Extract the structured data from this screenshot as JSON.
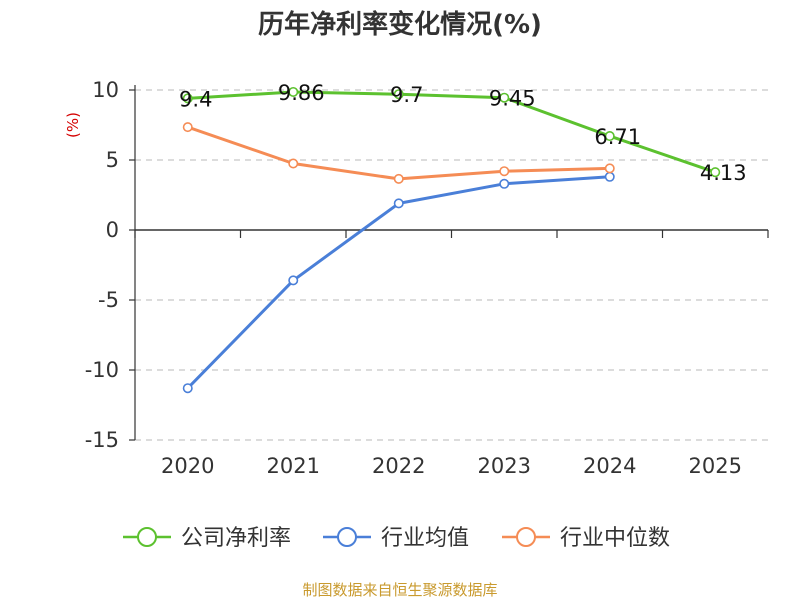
{
  "chart_data": {
    "type": "line",
    "title": "历年净利率变化情况(%)",
    "ylabel": "(%)",
    "categories": [
      "2020",
      "2021",
      "2022",
      "2023",
      "2024",
      "2025"
    ],
    "ylim": [
      -15,
      10
    ],
    "yticks": [
      10,
      5,
      0,
      -5,
      -10,
      -15
    ],
    "grid": true,
    "legend_position": "bottom",
    "series": [
      {
        "name": "公司净利率",
        "color": "#5cc12f",
        "values": [
          9.4,
          9.86,
          9.7,
          9.45,
          6.71,
          4.13
        ],
        "labels": [
          "9.4",
          "9.86",
          "9.7",
          "9.45",
          "6.71",
          "4.13"
        ]
      },
      {
        "name": "行业均值",
        "color": "#4a7fd8",
        "values": [
          -11.3,
          -3.6,
          1.9,
          3.3,
          3.8,
          null
        ]
      },
      {
        "name": "行业中位数",
        "color": "#f58c55",
        "values": [
          7.35,
          4.75,
          3.65,
          4.2,
          4.4,
          null
        ]
      }
    ]
  },
  "footer": {
    "source": "制图数据来自恒生聚源数据库"
  }
}
